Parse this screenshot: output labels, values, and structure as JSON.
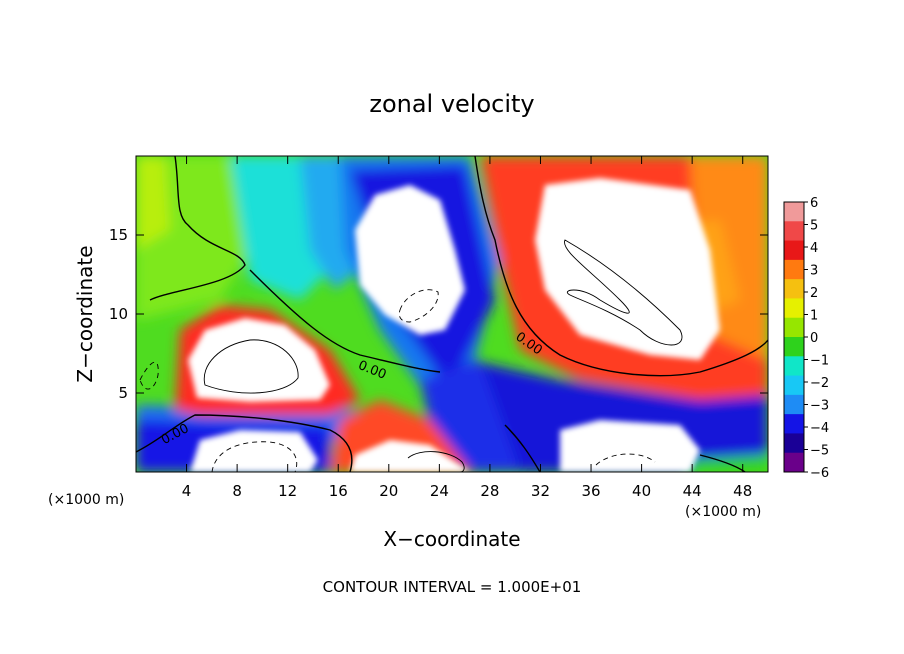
{
  "chart_data": {
    "type": "heatmap",
    "title": "zonal velocity",
    "xlabel": "X−coordinate",
    "ylabel": "Z−coordinate",
    "x_unit_left": "(×1000 m)",
    "x_unit_right": "(×1000 m)",
    "xlim": [
      0,
      50
    ],
    "ylim": [
      0,
      20
    ],
    "x_ticks": [
      4,
      8,
      12,
      16,
      20,
      24,
      28,
      32,
      36,
      40,
      44,
      48
    ],
    "x_tick_labels": [
      "4",
      "8",
      "12",
      "16",
      "20",
      "24",
      "28",
      "32",
      "36",
      "40",
      "44",
      "48"
    ],
    "y_ticks": [
      5,
      10,
      15
    ],
    "y_tick_labels": [
      "5",
      "10",
      "15"
    ],
    "colorbar": {
      "min": -6,
      "max": 6,
      "ticks": [
        6,
        5,
        4,
        3,
        2,
        1,
        0,
        -1,
        -2,
        -3,
        -4,
        -5,
        -6
      ],
      "tick_labels": [
        "6",
        "5",
        "4",
        "3",
        "2",
        "1",
        "0",
        "−1",
        "−2",
        "−3",
        "−4",
        "−5",
        "−6"
      ],
      "colors": [
        "#f09a9a",
        "#f04848",
        "#e81818",
        "#ff7a10",
        "#f5c010",
        "#e6f000",
        "#96e600",
        "#2ed21c",
        "#10e6c8",
        "#18c8f5",
        "#1e8cf5",
        "#1414e6",
        "#1a0096",
        "#6a008a"
      ]
    },
    "contour_labels": [
      "0.00",
      "0.00",
      "0.00"
    ],
    "footnote": "CONTOUR INTERVAL = 1.000E+01"
  }
}
